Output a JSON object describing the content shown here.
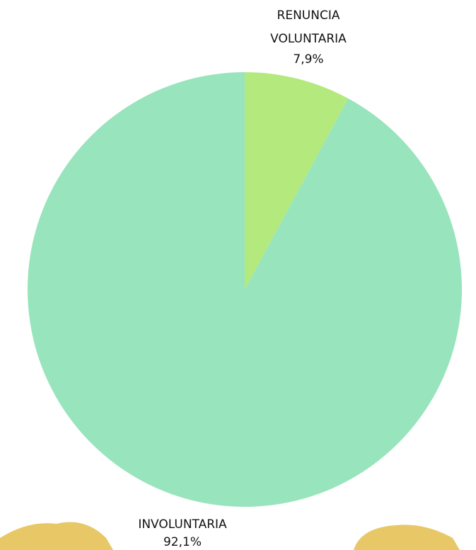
{
  "chart_data": {
    "type": "pie",
    "categories": [
      "RENUNCIA VOLUNTARIA",
      "INVOLUNTARIA"
    ],
    "values": [
      7.9,
      92.1
    ],
    "value_labels": [
      "7,9%",
      "92,1%"
    ],
    "colors": [
      "#b4e97d",
      "#98e4bd"
    ]
  }
}
